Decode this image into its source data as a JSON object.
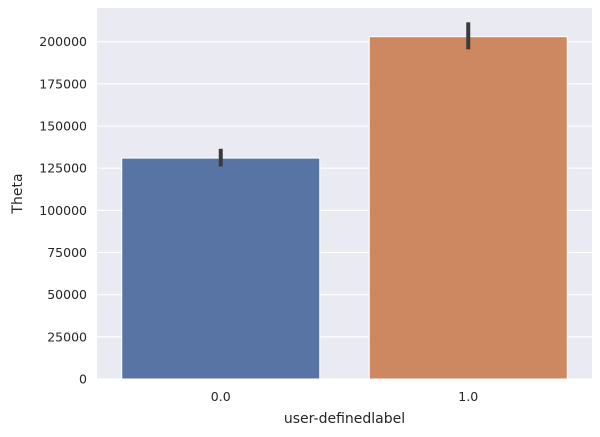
{
  "chart_data": {
    "type": "bar",
    "title": "",
    "xlabel": "user-definedlabel",
    "ylabel": "Theta",
    "categories": [
      "0.0",
      "1.0"
    ],
    "values": [
      131000,
      203000
    ],
    "error_bars": [
      [
        126000,
        136500
      ],
      [
        195500,
        211500
      ]
    ],
    "ylim": [
      0,
      220000
    ],
    "yticks": [
      0,
      25000,
      50000,
      75000,
      100000,
      125000,
      150000,
      175000,
      200000
    ],
    "ytick_labels": [
      "0",
      "25000",
      "50000",
      "75000",
      "100000",
      "125000",
      "150000",
      "175000",
      "200000"
    ],
    "colors": [
      "#5874a5",
      "#cd8862"
    ],
    "background_color": "#eaeaf2",
    "grid_color": "#ffffff",
    "errorbar_color": "#3a3a3a",
    "grid": true,
    "legend": "none"
  }
}
